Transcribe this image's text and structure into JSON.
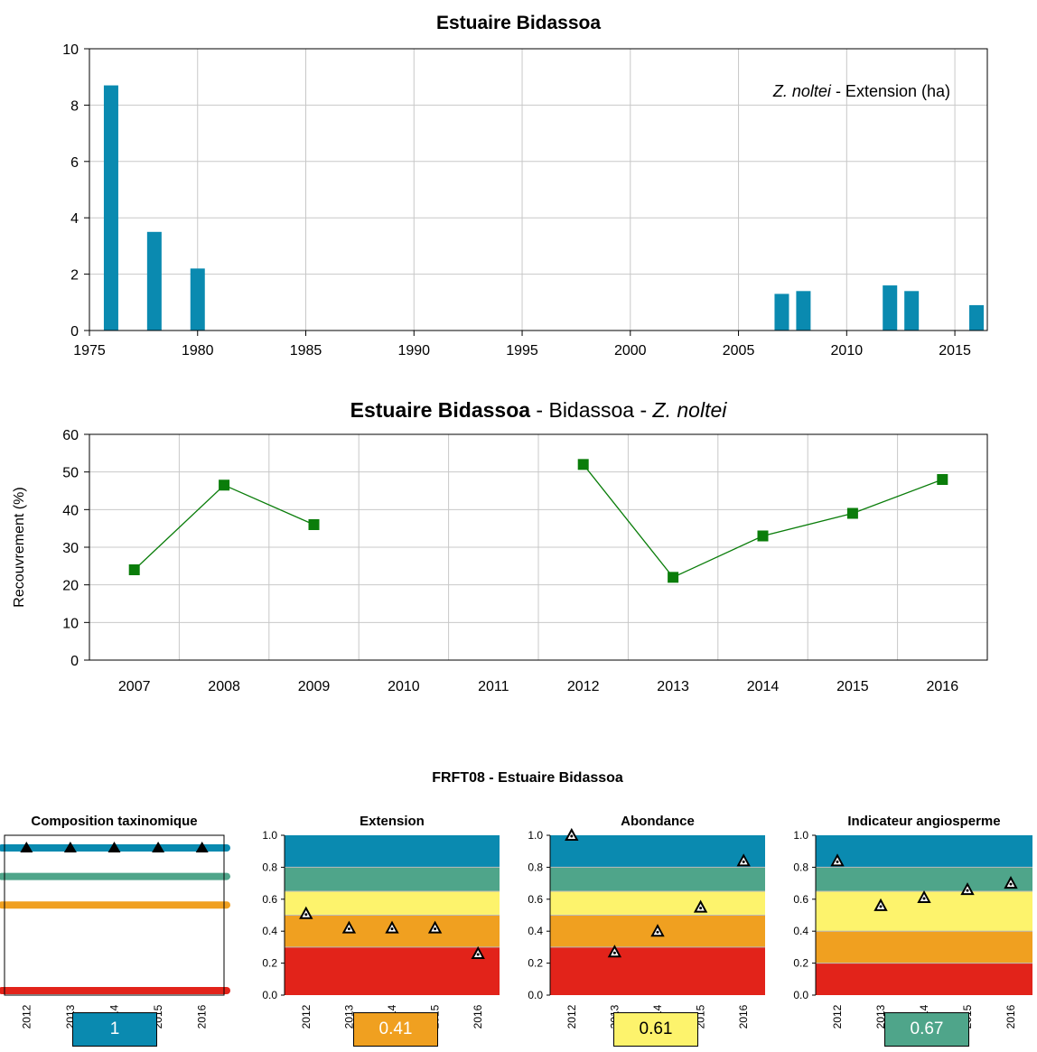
{
  "chart_data": [
    {
      "type": "bar",
      "title": "Estuaire Bidassoa",
      "annotation": {
        "italic": "Z. noltei",
        "rest": " - Extension (ha)"
      },
      "x": [
        1976,
        1978,
        1980,
        2007,
        2008,
        2012,
        2013,
        2016
      ],
      "values": [
        8.7,
        3.5,
        2.2,
        1.3,
        1.4,
        1.6,
        1.4,
        0.9
      ],
      "xlim": [
        1975,
        2016.5
      ],
      "ylim": [
        0,
        10
      ],
      "xticks": [
        1975,
        1980,
        1985,
        1990,
        1995,
        2000,
        2005,
        2010,
        2015
      ],
      "yticks": [
        0,
        2,
        4,
        6,
        8,
        10
      ],
      "grid": true,
      "color": "#0a8ab0"
    },
    {
      "type": "line",
      "title_bold": "Estuaire Bidassoa",
      "title_rest": " - Bidassoa - ",
      "title_italic": "Z. noltei",
      "ylabel": "Recouvrement (%)",
      "categories": [
        "2007",
        "2008",
        "2009",
        "2010",
        "2011",
        "2012",
        "2013",
        "2014",
        "2015",
        "2016"
      ],
      "values": [
        24,
        46.5,
        36,
        null,
        null,
        52,
        22,
        33,
        39,
        48
      ],
      "ylim": [
        0,
        60
      ],
      "yticks": [
        0,
        10,
        20,
        30,
        40,
        50,
        60
      ],
      "grid": true,
      "color": "#0a7d0a"
    },
    {
      "type": "scatter",
      "group_title": "FRFT08 - Estuaire Bidassoa",
      "panels": [
        {
          "title": "Composition taxinomique",
          "x": [
            "2012",
            "2013",
            "2014",
            "2015",
            "2016"
          ],
          "values": [
            1,
            1,
            1,
            1,
            1
          ],
          "style": "lines",
          "bands": [
            1.0,
            0.8,
            0.6,
            0.0
          ],
          "score": "1",
          "score_color": "#0a8ab0",
          "score_text_color": "#ffffff"
        },
        {
          "title": "Extension",
          "x": [
            "2012",
            "2013",
            "2014",
            "2015",
            "2016"
          ],
          "values": [
            0.51,
            0.42,
            0.42,
            0.42,
            0.26
          ],
          "ylim": [
            0,
            1
          ],
          "yticks": [
            "0.0",
            "0.2",
            "0.4",
            "0.6",
            "0.8",
            "1.0"
          ],
          "bands": [
            0.8,
            0.65,
            0.5,
            0.3
          ],
          "score": "0.41",
          "score_color": "#f0a020",
          "score_text_color": "#ffffff"
        },
        {
          "title": "Abondance",
          "x": [
            "2012",
            "2013",
            "2014",
            "2015",
            "2016"
          ],
          "values": [
            1.0,
            0.27,
            0.4,
            0.55,
            0.84
          ],
          "ylim": [
            0,
            1
          ],
          "yticks": [
            "0.0",
            "0.2",
            "0.4",
            "0.6",
            "0.8",
            "1.0"
          ],
          "bands": [
            0.8,
            0.65,
            0.5,
            0.3
          ],
          "score": "0.61",
          "score_color": "#fdf36c",
          "score_text_color": "#000000"
        },
        {
          "title": "Indicateur angiosperme",
          "x": [
            "2012",
            "2013",
            "2014",
            "2015",
            "2016"
          ],
          "values": [
            0.84,
            0.56,
            0.61,
            0.66,
            0.7
          ],
          "ylim": [
            0,
            1
          ],
          "yticks": [
            "0.0",
            "0.2",
            "0.4",
            "0.6",
            "0.8",
            "1.0"
          ],
          "bands": [
            0.8,
            0.65,
            0.4,
            0.2
          ],
          "score": "0.67",
          "score_color": "#4fa58a",
          "score_text_color": "#ffffff"
        }
      ],
      "colors": {
        "high": "#0a8ab0",
        "good": "#4fa58a",
        "moderate": "#fdf36c",
        "poor": "#f0a020",
        "bad": "#e2231a"
      }
    }
  ]
}
